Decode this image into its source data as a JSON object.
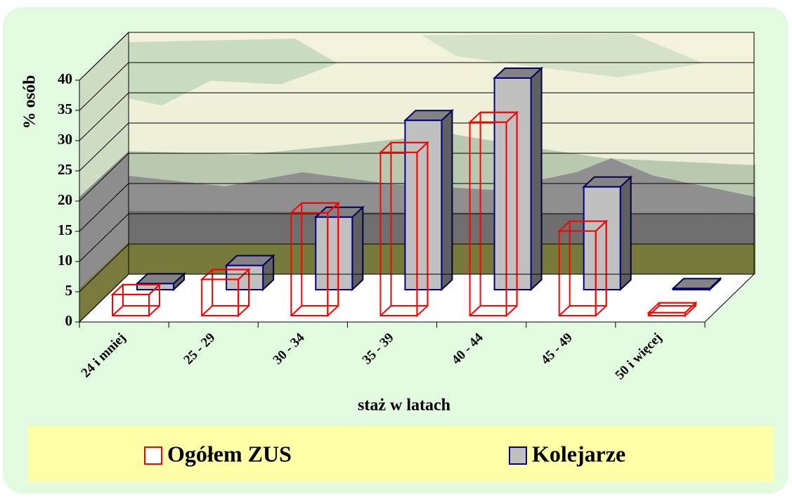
{
  "chart_data": {
    "type": "bar3d",
    "x_label": "staż w latach",
    "y_label": "% osób",
    "categories": [
      "24 i mniej",
      "25 - 29",
      "30 - 34",
      "35 - 39",
      "40 - 44",
      "45 - 49",
      "50 i więcej"
    ],
    "series": [
      {
        "name": "Ogółem ZUS",
        "color": "#ff0000",
        "fill": "none",
        "values": [
          3.5,
          6,
          17,
          27,
          32,
          14,
          0.5
        ]
      },
      {
        "name": "Kolejarze",
        "color": "#000080",
        "fill": "#c0c0c0",
        "values": [
          1,
          4,
          12,
          28,
          35,
          17,
          0.2
        ]
      }
    ],
    "ylim": [
      0,
      40
    ],
    "yticks": [
      0,
      5,
      10,
      15,
      20,
      25,
      30,
      35,
      40
    ],
    "grid": true,
    "legend": "bottom"
  }
}
